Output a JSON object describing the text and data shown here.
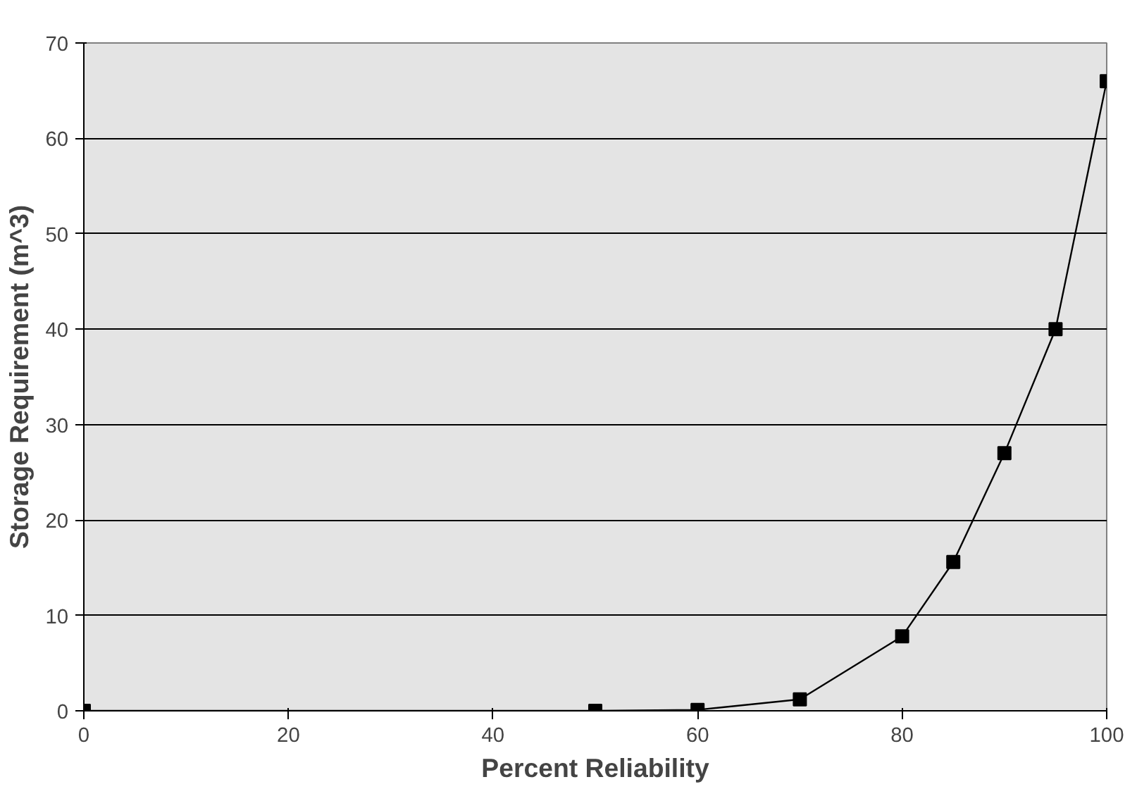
{
  "chart_data": {
    "type": "line",
    "xlabel": "Percent Reliability",
    "ylabel": "Storage Requirement (m^3)",
    "x": [
      0,
      50,
      60,
      70,
      80,
      85,
      90,
      95,
      100
    ],
    "series": [
      {
        "color": "#000000",
        "values": [
          0,
          0,
          0.1,
          1.2,
          7.8,
          15.6,
          27,
          40,
          66
        ]
      }
    ],
    "xlim": [
      0,
      100
    ],
    "xticks": [
      0,
      20,
      40,
      60,
      80,
      100
    ],
    "ylim": [
      0,
      70
    ],
    "yticks": [
      0,
      10,
      20,
      30,
      40,
      50,
      60,
      70
    ],
    "grid": "y",
    "marker": "square",
    "line_style": "solid"
  }
}
